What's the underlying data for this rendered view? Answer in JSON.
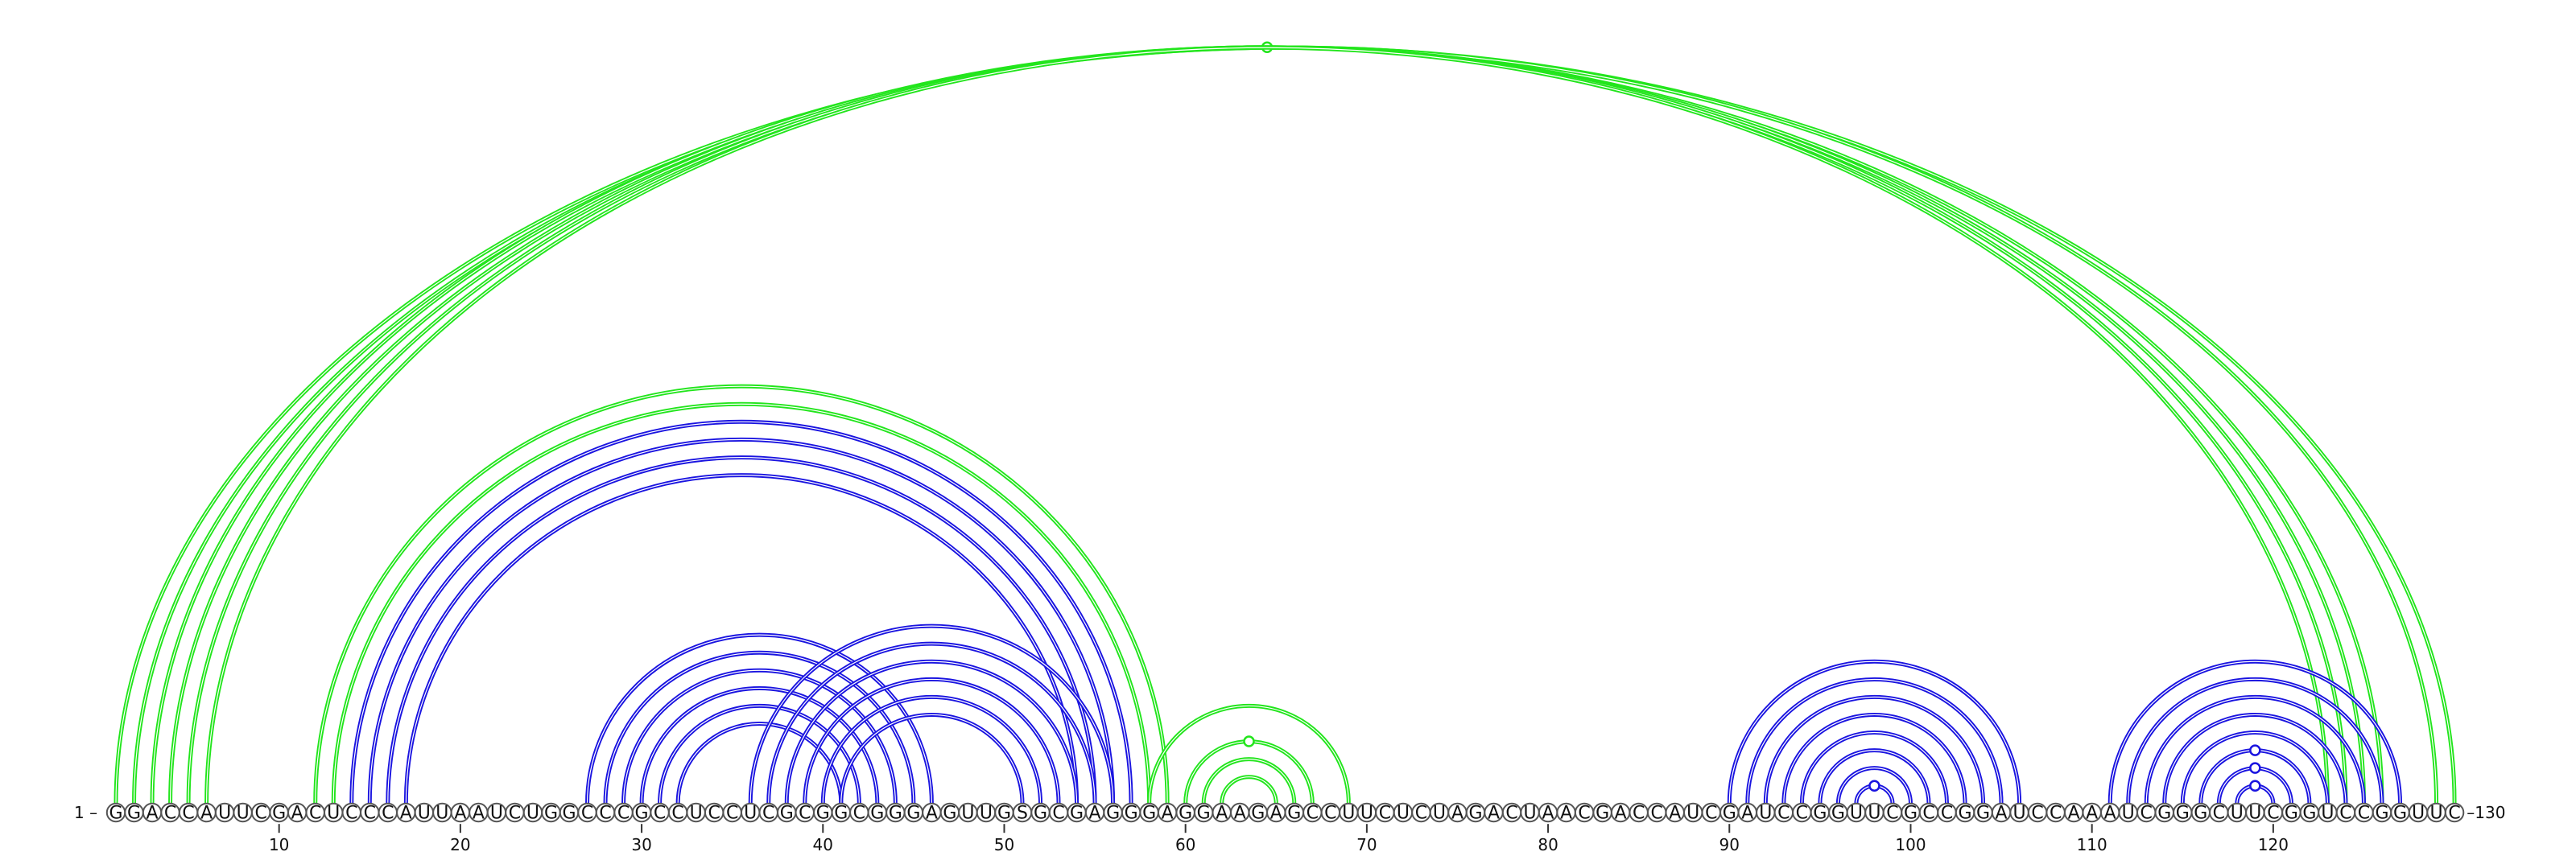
{
  "sequence": "GGACCAUUCGACUCCCAUUAAUCUGGCCCGCCUCCUCGCGGCGGGAGUUGSGCGAGGGAGGAAGAGCCUUCUCUAGACUAACGACCAUCGAUCCGGUUCGCCGGAUCCAAAUCGGGCUUCGGUCCGGUUC",
  "start_label": "1",
  "end_label": "130",
  "ticks": [
    "10",
    "20",
    "30",
    "40",
    "50",
    "60",
    "70",
    "80",
    "90",
    "100",
    "110",
    "120"
  ],
  "colors": {
    "green": "#22e51c",
    "blue": "#1a14e0",
    "letters": "#111111",
    "background": "#ffffff"
  },
  "green_pairs": [
    [
      1,
      130
    ],
    [
      2,
      129
    ],
    [
      3,
      126
    ],
    [
      4,
      125
    ],
    [
      5,
      124
    ],
    [
      6,
      123
    ],
    [
      12,
      59
    ],
    [
      13,
      58
    ],
    [
      58,
      69
    ],
    [
      60,
      67
    ],
    [
      61,
      66
    ],
    [
      62,
      65
    ]
  ],
  "blue_pairs": [
    [
      14,
      57
    ],
    [
      15,
      56
    ],
    [
      16,
      55
    ],
    [
      17,
      54
    ],
    [
      27,
      46
    ],
    [
      28,
      45
    ],
    [
      29,
      44
    ],
    [
      30,
      43
    ],
    [
      31,
      42
    ],
    [
      32,
      41
    ],
    [
      36,
      56
    ],
    [
      37,
      55
    ],
    [
      38,
      54
    ],
    [
      39,
      53
    ],
    [
      40,
      52
    ],
    [
      41,
      51
    ],
    [
      90,
      106
    ],
    [
      91,
      105
    ],
    [
      92,
      104
    ],
    [
      93,
      103
    ],
    [
      94,
      102
    ],
    [
      95,
      101
    ],
    [
      96,
      100
    ],
    [
      97,
      99
    ],
    [
      111,
      127
    ],
    [
      112,
      126
    ],
    [
      113,
      125
    ],
    [
      114,
      124
    ],
    [
      115,
      123
    ],
    [
      116,
      122
    ],
    [
      117,
      121
    ],
    [
      118,
      120
    ]
  ],
  "highlighted_pairs": [
    [
      3,
      126
    ],
    [
      60,
      67
    ],
    [
      97,
      99
    ],
    [
      116,
      122
    ],
    [
      117,
      121
    ],
    [
      118,
      120
    ]
  ]
}
